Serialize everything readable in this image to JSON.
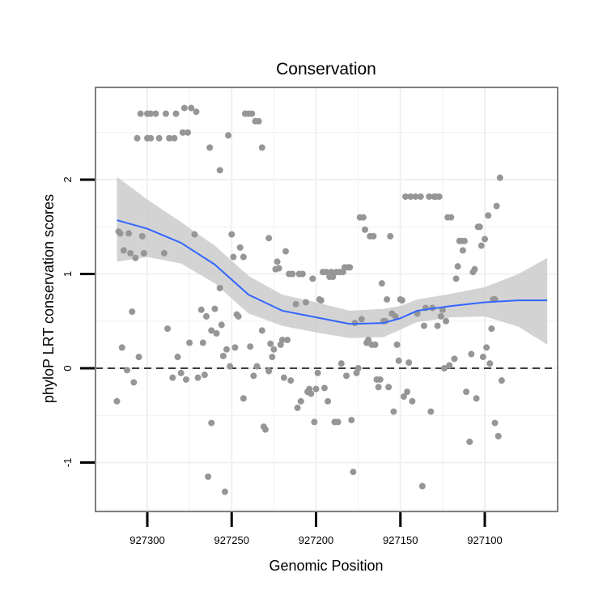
{
  "chart_data": {
    "type": "scatter",
    "title": "Conservation",
    "xlabel": "Genomic Position",
    "ylabel": "phyloP LRT conservation scores",
    "x_reversed": true,
    "xlim": [
      927055,
      927330
    ],
    "ylim": [
      -1.5,
      3.0
    ],
    "x_ticks": [
      927300,
      927250,
      927200,
      927150,
      927100
    ],
    "y_ticks": [
      -1,
      0,
      1,
      2
    ],
    "grid": true,
    "reference_line": {
      "y": 0,
      "style": "dashed"
    },
    "colors": {
      "points": "#969696",
      "smooth": "#3366ff",
      "band": "#c8c8c8",
      "panel_border": "#7f7f7f",
      "grid": "#f0f0f0"
    },
    "smooth": {
      "x": [
        927318,
        927300,
        927280,
        927260,
        927240,
        927220,
        927200,
        927180,
        927160,
        927150,
        927140,
        927120,
        927100,
        927080,
        927063
      ],
      "y": [
        1.57,
        1.48,
        1.33,
        1.1,
        0.78,
        0.61,
        0.54,
        0.47,
        0.48,
        0.53,
        0.61,
        0.66,
        0.7,
        0.72,
        0.72
      ],
      "lower": [
        1.13,
        1.18,
        1.11,
        0.9,
        0.58,
        0.45,
        0.38,
        0.32,
        0.33,
        0.41,
        0.49,
        0.54,
        0.55,
        0.44,
        0.25
      ],
      "upper": [
        2.03,
        1.79,
        1.55,
        1.3,
        0.98,
        0.78,
        0.7,
        0.61,
        0.63,
        0.66,
        0.73,
        0.79,
        0.86,
        1.0,
        1.17
      ]
    },
    "points": [
      [
        927318,
        -0.35
      ],
      [
        927317,
        1.45
      ],
      [
        927316,
        1.43
      ],
      [
        927315,
        0.22
      ],
      [
        927314,
        1.25
      ],
      [
        927312,
        -0.02
      ],
      [
        927311,
        1.43
      ],
      [
        927310,
        1.22
      ],
      [
        927309,
        0.6
      ],
      [
        927308,
        -0.15
      ],
      [
        927307,
        1.17
      ],
      [
        927306,
        2.44
      ],
      [
        927305,
        0.12
      ],
      [
        927304,
        2.7
      ],
      [
        927303,
        1.4
      ],
      [
        927302,
        1.22
      ],
      [
        927300,
        2.7
      ],
      [
        927300,
        2.44
      ],
      [
        927298,
        2.7
      ],
      [
        927298,
        2.44
      ],
      [
        927295,
        2.7
      ],
      [
        927293,
        2.44
      ],
      [
        927290,
        1.22
      ],
      [
        927289,
        2.7
      ],
      [
        927288,
        0.42
      ],
      [
        927287,
        2.44
      ],
      [
        927285,
        -0.1
      ],
      [
        927284,
        2.44
      ],
      [
        927283,
        2.7
      ],
      [
        927282,
        0.12
      ],
      [
        927280,
        -0.05
      ],
      [
        927279,
        2.5
      ],
      [
        927278,
        2.76
      ],
      [
        927277,
        -0.12
      ],
      [
        927276,
        2.5
      ],
      [
        927275,
        0.27
      ],
      [
        927274,
        2.76
      ],
      [
        927272,
        1.42
      ],
      [
        927271,
        2.72
      ],
      [
        927270,
        -0.1
      ],
      [
        927268,
        0.62
      ],
      [
        927267,
        0.27
      ],
      [
        927266,
        -0.07
      ],
      [
        927265,
        0.55
      ],
      [
        927264,
        -1.15
      ],
      [
        927263,
        2.34
      ],
      [
        927262,
        -0.58
      ],
      [
        927262,
        0.4
      ],
      [
        927260,
        0.63
      ],
      [
        927259,
        0.37
      ],
      [
        927257,
        2.1
      ],
      [
        927257,
        0.85
      ],
      [
        927256,
        0.46
      ],
      [
        927255,
        0.13
      ],
      [
        927254,
        -1.31
      ],
      [
        927253,
        0.2
      ],
      [
        927252,
        2.47
      ],
      [
        927251,
        0.02
      ],
      [
        927250,
        1.42
      ],
      [
        927249,
        1.18
      ],
      [
        927248,
        0.22
      ],
      [
        927247,
        0.57
      ],
      [
        927246,
        0.55
      ],
      [
        927245,
        1.28
      ],
      [
        927243,
        -0.32
      ],
      [
        927243,
        1.18
      ],
      [
        927242,
        2.7
      ],
      [
        927240,
        2.7
      ],
      [
        927239,
        0.23
      ],
      [
        927238,
        2.7
      ],
      [
        927237,
        -0.08
      ],
      [
        927236,
        2.62
      ],
      [
        927235,
        0.02
      ],
      [
        927234,
        2.62
      ],
      [
        927232,
        2.34
      ],
      [
        927232,
        0.4
      ],
      [
        927231,
        -0.62
      ],
      [
        927230,
        -0.65
      ],
      [
        927228,
        1.38
      ],
      [
        927228,
        -0.03
      ],
      [
        927227,
        0.26
      ],
      [
        927226,
        0.12
      ],
      [
        927225,
        0.2
      ],
      [
        927224,
        1.05
      ],
      [
        927223,
        1.13
      ],
      [
        927222,
        1.06
      ],
      [
        927221,
        0.25
      ],
      [
        927220,
        0.3
      ],
      [
        927219,
        -0.1
      ],
      [
        927218,
        1.24
      ],
      [
        927217,
        0.3
      ],
      [
        927216,
        1.0
      ],
      [
        927215,
        -0.13
      ],
      [
        927214,
        1.0
      ],
      [
        927212,
        0.68
      ],
      [
        927211,
        -0.42
      ],
      [
        927210,
        1.0
      ],
      [
        927209,
        -0.35
      ],
      [
        927208,
        1.0
      ],
      [
        927206,
        0.7
      ],
      [
        927205,
        -0.25
      ],
      [
        927204,
        -0.22
      ],
      [
        927203,
        -0.27
      ],
      [
        927202,
        0.95
      ],
      [
        927201,
        -0.57
      ],
      [
        927200,
        -0.22
      ],
      [
        927199,
        -0.05
      ],
      [
        927198,
        0.73
      ],
      [
        927197,
        0.72
      ],
      [
        927196,
        1.02
      ],
      [
        927195,
        -0.21
      ],
      [
        927194,
        1.02
      ],
      [
        927193,
        -0.35
      ],
      [
        927192,
        0.97
      ],
      [
        927191,
        1.02
      ],
      [
        927190,
        0.97
      ],
      [
        927189,
        -0.57
      ],
      [
        927188,
        1.02
      ],
      [
        927187,
        -0.57
      ],
      [
        927186,
        1.02
      ],
      [
        927185,
        0.05
      ],
      [
        927184,
        1.02
      ],
      [
        927183,
        1.07
      ],
      [
        927182,
        -0.08
      ],
      [
        927181,
        1.07
      ],
      [
        927180,
        1.07
      ],
      [
        927179,
        -0.55
      ],
      [
        927178,
        -1.1
      ],
      [
        927177,
        0.48
      ],
      [
        927176,
        -0.05
      ],
      [
        927175,
        0.0
      ],
      [
        927174,
        1.6
      ],
      [
        927173,
        0.52
      ],
      [
        927172,
        1.6
      ],
      [
        927171,
        1.47
      ],
      [
        927170,
        0.27
      ],
      [
        927169,
        0.3
      ],
      [
        927168,
        1.4
      ],
      [
        927167,
        0.25
      ],
      [
        927166,
        1.4
      ],
      [
        927165,
        0.25
      ],
      [
        927164,
        -0.12
      ],
      [
        927163,
        -0.2
      ],
      [
        927162,
        -0.12
      ],
      [
        927161,
        0.9
      ],
      [
        927160,
        0.5
      ],
      [
        927159,
        0.5
      ],
      [
        927158,
        0.73
      ],
      [
        927157,
        -0.2
      ],
      [
        927156,
        1.4
      ],
      [
        927155,
        0.58
      ],
      [
        927154,
        -0.46
      ],
      [
        927153,
        0.55
      ],
      [
        927152,
        0.25
      ],
      [
        927151,
        0.08
      ],
      [
        927150,
        0.73
      ],
      [
        927149,
        0.72
      ],
      [
        927148,
        -0.3
      ],
      [
        927147,
        1.82
      ],
      [
        927146,
        -0.25
      ],
      [
        927145,
        0.06
      ],
      [
        927144,
        1.82
      ],
      [
        927143,
        -0.35
      ],
      [
        927141,
        1.82
      ],
      [
        927140,
        0.58
      ],
      [
        927138,
        1.82
      ],
      [
        927137,
        -1.25
      ],
      [
        927136,
        0.45
      ],
      [
        927135,
        0.64
      ],
      [
        927133,
        1.82
      ],
      [
        927132,
        -0.46
      ],
      [
        927131,
        0.64
      ],
      [
        927130,
        1.82
      ],
      [
        927129,
        1.82
      ],
      [
        927128,
        0.45
      ],
      [
        927127,
        1.82
      ],
      [
        927126,
        0.55
      ],
      [
        927125,
        0.62
      ],
      [
        927124,
        0.0
      ],
      [
        927123,
        0.5
      ],
      [
        927122,
        1.6
      ],
      [
        927121,
        0.03
      ],
      [
        927120,
        1.6
      ],
      [
        927118,
        0.1
      ],
      [
        927117,
        0.95
      ],
      [
        927116,
        1.08
      ],
      [
        927115,
        1.35
      ],
      [
        927114,
        1.35
      ],
      [
        927113,
        1.25
      ],
      [
        927112,
        1.35
      ],
      [
        927111,
        -0.25
      ],
      [
        927109,
        -0.78
      ],
      [
        927108,
        0.15
      ],
      [
        927107,
        1.02
      ],
      [
        927106,
        1.05
      ],
      [
        927105,
        -0.32
      ],
      [
        927104,
        1.5
      ],
      [
        927103,
        1.5
      ],
      [
        927102,
        1.3
      ],
      [
        927101,
        0.12
      ],
      [
        927100,
        1.37
      ],
      [
        927099,
        0.22
      ],
      [
        927098,
        1.62
      ],
      [
        927097,
        0.05
      ],
      [
        927096,
        0.42
      ],
      [
        927095,
        0.73
      ],
      [
        927094,
        -0.58
      ],
      [
        927094,
        0.73
      ],
      [
        927093,
        1.72
      ],
      [
        927092,
        -0.72
      ],
      [
        927091,
        2.02
      ],
      [
        927090,
        -0.13
      ]
    ]
  }
}
